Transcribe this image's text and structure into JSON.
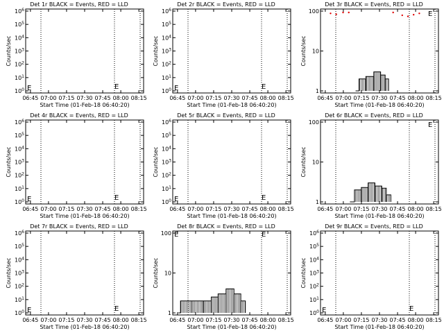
{
  "chart_data": [
    {
      "type": "line",
      "title": "Det 1r BLACK = Events, RED = LLD",
      "xlabel": "Start Time (01-Feb-18 06:40:20)",
      "ylabel": "Counts/sec",
      "scale": "log",
      "y_ticks": [
        "10^0",
        "10^1",
        "10^2",
        "10^3",
        "10^4",
        "10^5",
        "10^6"
      ],
      "x_ticks": [
        "06:45",
        "07:00",
        "07:15",
        "07:30",
        "07:45",
        "08:00",
        "08:15"
      ],
      "markers": [
        "E",
        "E"
      ],
      "events": [],
      "lld": []
    },
    {
      "type": "line",
      "title": "Det 2r BLACK = Events, RED = LLD",
      "xlabel": "Start Time (01-Feb-18 06:40:20)",
      "ylabel": "Counts/sec",
      "scale": "log",
      "y_ticks": [
        "10^0",
        "10^1",
        "10^2",
        "10^3",
        "10^4",
        "10^5",
        "10^6"
      ],
      "x_ticks": [
        "06:45",
        "07:00",
        "07:15",
        "07:30",
        "07:45",
        "08:00",
        "08:15"
      ],
      "markers": [
        "E",
        "E"
      ],
      "events": [],
      "lld": []
    },
    {
      "type": "line",
      "title": "Det 3r BLACK = Events, RED = LLD",
      "xlabel": "Start Time (01-Feb-18 06:40:20)",
      "ylabel": "Counts/sec",
      "scale": "log",
      "y_ticks": [
        "1",
        "10",
        "100"
      ],
      "x_ticks": [
        "06:45",
        "07:00",
        "07:15",
        "07:30",
        "07:45",
        "08:00",
        "08:15"
      ],
      "markers": [
        "E"
      ],
      "events": [
        [
          29,
          1
        ],
        [
          32,
          2
        ],
        [
          38,
          2.3
        ],
        [
          45,
          3
        ],
        [
          51,
          2.5
        ],
        [
          55,
          2
        ],
        [
          58,
          1
        ]
      ],
      "lld": [
        [
          7,
          95
        ],
        [
          12,
          90
        ],
        [
          18,
          100
        ],
        [
          23,
          105
        ],
        [
          62,
          110
        ],
        [
          70,
          85
        ],
        [
          75,
          80
        ],
        [
          80,
          88
        ],
        [
          85,
          95
        ]
      ]
    },
    {
      "type": "line",
      "title": "Det 4r BLACK = Events, RED = LLD",
      "xlabel": "Start Time (01-Feb-18 06:40:20)",
      "ylabel": "Counts/sec",
      "scale": "log",
      "y_ticks": [
        "10^0",
        "10^1",
        "10^2",
        "10^3",
        "10^4",
        "10^5",
        "10^6"
      ],
      "x_ticks": [
        "06:45",
        "07:00",
        "07:15",
        "07:30",
        "07:45",
        "08:00",
        "08:15"
      ],
      "markers": [
        "E",
        "E"
      ],
      "events": [],
      "lld": []
    },
    {
      "type": "line",
      "title": "Det 5r BLACK = Events, RED = LLD",
      "xlabel": "Start Time (01-Feb-18 06:40:20)",
      "ylabel": "Counts/sec",
      "scale": "log",
      "y_ticks": [
        "10^0",
        "10^1",
        "10^2",
        "10^3",
        "10^4",
        "10^5",
        "10^6"
      ],
      "x_ticks": [
        "06:45",
        "07:00",
        "07:15",
        "07:30",
        "07:45",
        "08:00",
        "08:15"
      ],
      "markers": [
        "E",
        "E"
      ],
      "events": [],
      "lld": []
    },
    {
      "type": "line",
      "title": "Det 6r BLACK = Events, RED = LLD",
      "xlabel": "Start Time (01-Feb-18 06:40:20)",
      "ylabel": "Counts/sec",
      "scale": "log",
      "y_ticks": [
        "1",
        "10",
        "100"
      ],
      "x_ticks": [
        "06:45",
        "07:00",
        "07:15",
        "07:30",
        "07:45",
        "08:00",
        "08:15"
      ],
      "markers": [
        "E"
      ],
      "events": [
        [
          24,
          1
        ],
        [
          28,
          2
        ],
        [
          34,
          2.3
        ],
        [
          40,
          3
        ],
        [
          46,
          2.5
        ],
        [
          52,
          2.2
        ],
        [
          56,
          1.5
        ],
        [
          60,
          1
        ]
      ],
      "lld": []
    },
    {
      "type": "line",
      "title": "Det 7r BLACK = Events, RED = LLD",
      "xlabel": "Start Time (01-Feb-18 06:40:20)",
      "ylabel": "Counts/sec",
      "scale": "log",
      "y_ticks": [
        "10^0",
        "10^1",
        "10^2",
        "10^3",
        "10^4",
        "10^5",
        "10^6"
      ],
      "x_ticks": [
        "06:45",
        "07:00",
        "07:15",
        "07:30",
        "07:45",
        "08:00",
        "08:15"
      ],
      "markers": [
        "E",
        "E"
      ],
      "events": [],
      "lld": []
    },
    {
      "type": "line",
      "title": "Det 8r BLACK = Events, RED = LLD",
      "xlabel": "Start Time (01-Feb-18 06:40:20)",
      "ylabel": "Counts/sec",
      "scale": "log",
      "y_ticks": [
        "1",
        "10",
        "100"
      ],
      "x_ticks": [
        "06:45",
        "07:00",
        "07:15",
        "07:30",
        "07:45",
        "08:00",
        "08:15"
      ],
      "markers": [
        "E",
        "E"
      ],
      "events": [
        [
          3,
          1
        ],
        [
          5,
          2
        ],
        [
          15,
          2
        ],
        [
          25,
          2
        ],
        [
          32,
          2.5
        ],
        [
          38,
          3
        ],
        [
          45,
          4
        ],
        [
          52,
          3
        ],
        [
          58,
          2
        ],
        [
          62,
          1
        ]
      ],
      "lld": []
    },
    {
      "type": "line",
      "title": "Det 9r BLACK = Events, RED = LLD",
      "xlabel": "Start Time (01-Feb-18 06:40:20)",
      "ylabel": "Counts/sec",
      "scale": "log",
      "y_ticks": [
        "10^0",
        "10^1",
        "10^2",
        "10^3",
        "10^4",
        "10^5",
        "10^6"
      ],
      "x_ticks": [
        "06:45",
        "07:00",
        "07:15",
        "07:30",
        "07:45",
        "08:00",
        "08:15"
      ],
      "markers": [
        "E",
        "E"
      ],
      "events": [],
      "lld": []
    }
  ]
}
